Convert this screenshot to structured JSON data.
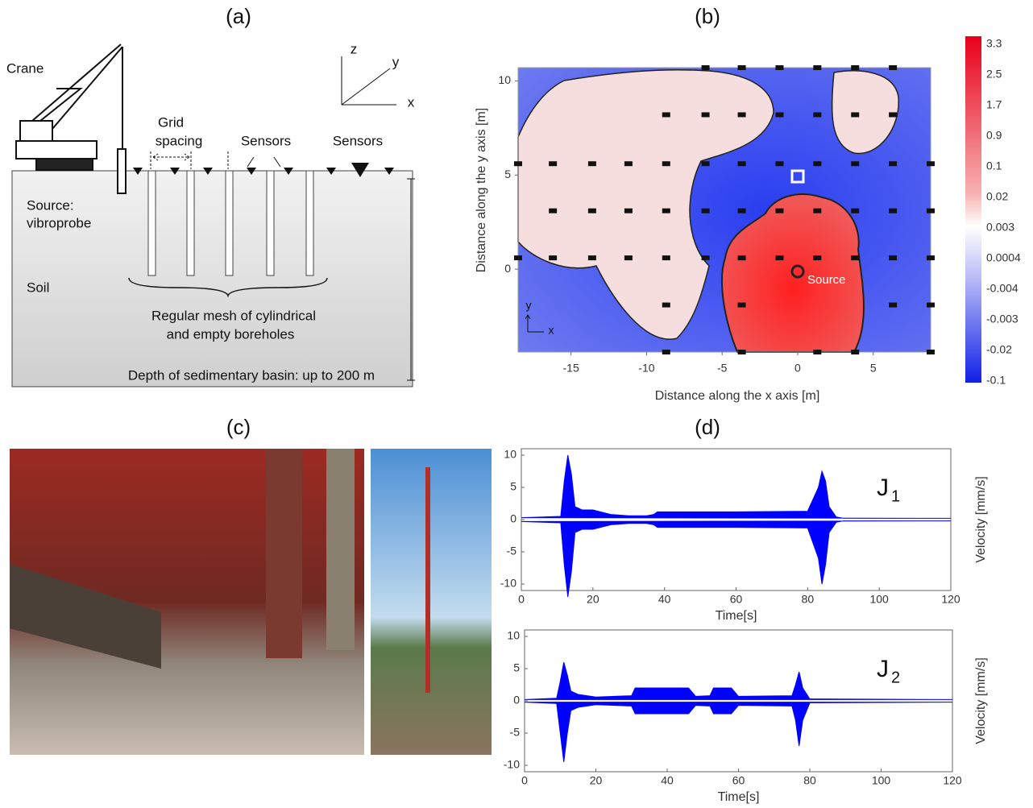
{
  "panel_a": {
    "label": "(a)",
    "crane": "Crane",
    "grid_1": "Grid",
    "grid_2": "spacing",
    "sensors_1": "Sensors",
    "sensors_2": "Sensors",
    "source_1": "Source:",
    "source_2": "vibroprobe",
    "soil": "Soil",
    "mesh_1": "Regular mesh of cylindrical",
    "mesh_2": "and empty boreholes",
    "depth": "Depth of sedimentary basin: up to 200 m",
    "axis_z": "z",
    "axis_y": "y",
    "axis_x": "x"
  },
  "panel_b": {
    "label": "(b)",
    "x_label": "Distance along the x axis [m]",
    "y_label": "Distance along the y axis [m]",
    "xlim": [
      -18.5,
      8.8
    ],
    "ylim": [
      -4.4,
      10.7
    ],
    "xticks": [
      -15,
      -10,
      -5,
      0,
      5
    ],
    "yticks": [
      0,
      5,
      10
    ],
    "source": "Source",
    "axis_y": "y",
    "axis_x": "x",
    "colorbar_labels": [
      "3.3",
      "2.5",
      "1.7",
      "0.9",
      "0.1",
      "0.02",
      "0.003",
      "0.0004",
      "-0.004",
      "-0.003",
      "-0.02",
      "-0.1"
    ],
    "sensors": {
      "x": [
        -6.1,
        -3.7,
        -1.2,
        1.3,
        3.8,
        6.3,
        -8.7,
        -6.1,
        -3.7,
        -1.2,
        1.3,
        3.8,
        6.3,
        -18.5,
        -16.2,
        -13.6,
        -11.2,
        -8.7,
        -6.1,
        -3.7,
        -1.2,
        1.3,
        3.8,
        6.3,
        8.8,
        -16.2,
        -13.6,
        -11.2,
        -8.7,
        -6.1,
        -3.7,
        -1.2,
        1.3,
        3.8,
        6.3,
        8.8,
        -18.5,
        -16.2,
        -13.6,
        -11.2,
        -8.7,
        -6.1,
        -3.7,
        -1.2,
        1.3,
        3.8,
        6.3,
        8.8,
        -8.7,
        -3.7,
        6.3,
        8.8,
        -8.7,
        -3.7,
        1.3,
        3.8,
        8.8
      ],
      "y": [
        10.7,
        10.7,
        10.7,
        10.7,
        10.7,
        10.7,
        8.2,
        8.2,
        8.2,
        8.2,
        8.2,
        8.2,
        8.2,
        5.6,
        5.6,
        5.6,
        5.6,
        5.6,
        5.6,
        5.6,
        5.6,
        5.6,
        5.6,
        5.6,
        5.6,
        3.1,
        3.1,
        3.1,
        3.1,
        3.1,
        3.1,
        3.1,
        3.1,
        3.1,
        3.1,
        3.1,
        0.6,
        0.6,
        0.6,
        0.6,
        0.6,
        0.6,
        0.6,
        0.6,
        0.6,
        0.6,
        0.6,
        0.6,
        -1.9,
        -1.9,
        -1.9,
        -1.9,
        -4.4,
        -4.4,
        -4.4,
        -4.4,
        -4.4
      ]
    }
  },
  "panel_c": {
    "label": "(c)"
  },
  "panel_d": {
    "label": "(d)",
    "charts": [
      {
        "name": "J",
        "subscript": "1",
        "x_label": "Time[s]",
        "y_label": "Velocity [mm/s]",
        "color": "#0000ff",
        "xlim": [
          0,
          120
        ],
        "ylim": [
          -11,
          11
        ],
        "xticks": [
          0,
          20,
          40,
          60,
          80,
          100,
          120
        ],
        "yticks": [
          -10,
          -5,
          0,
          5,
          10
        ],
        "x": [
          0,
          11,
          12,
          13,
          14,
          15,
          17,
          20,
          25,
          30,
          35,
          37,
          38,
          60,
          80,
          83,
          84,
          85,
          86,
          88,
          90,
          120
        ],
        "upper": [
          0.3,
          0.5,
          6,
          10,
          7,
          2,
          1.5,
          1.5,
          0.8,
          0.6,
          0.6,
          0.8,
          1.2,
          1.2,
          1.3,
          5,
          7.5,
          6,
          2,
          0.4,
          0.2,
          0.2
        ],
        "lower": [
          -0.3,
          -0.5,
          -7,
          -12,
          -8,
          -2,
          -1.5,
          -1.5,
          -0.8,
          -0.6,
          -0.6,
          -0.8,
          -1.2,
          -1.2,
          -1.3,
          -6,
          -10,
          -7,
          -2,
          -0.4,
          -0.2,
          -0.2
        ]
      },
      {
        "name": "J",
        "subscript": "2",
        "x_label": "Time[s]",
        "y_label": "Velocity [mm/s]",
        "color": "#0000ff",
        "xlim": [
          0,
          120
        ],
        "ylim": [
          -11,
          11
        ],
        "xticks": [
          0,
          20,
          40,
          60,
          80,
          100,
          120
        ],
        "yticks": [
          -10,
          -5,
          0,
          5,
          10
        ],
        "x": [
          0,
          9,
          10,
          11,
          12,
          13,
          15,
          20,
          30,
          31,
          46,
          48,
          52,
          53,
          58,
          60,
          75,
          76,
          77,
          78,
          80,
          120
        ],
        "upper": [
          0.2,
          0.4,
          3,
          6,
          4,
          1.5,
          1,
          0.6,
          0.8,
          2,
          2,
          0.7,
          0.8,
          2,
          2,
          0.7,
          0.8,
          2.5,
          4.5,
          2,
          0.3,
          0.2
        ],
        "lower": [
          -0.2,
          -0.4,
          -5,
          -9.5,
          -5,
          -1.5,
          -1,
          -0.6,
          -0.8,
          -2,
          -2,
          -0.7,
          -0.8,
          -2,
          -2,
          -0.7,
          -0.8,
          -3,
          -7,
          -3,
          -0.3,
          -0.2
        ]
      }
    ]
  }
}
